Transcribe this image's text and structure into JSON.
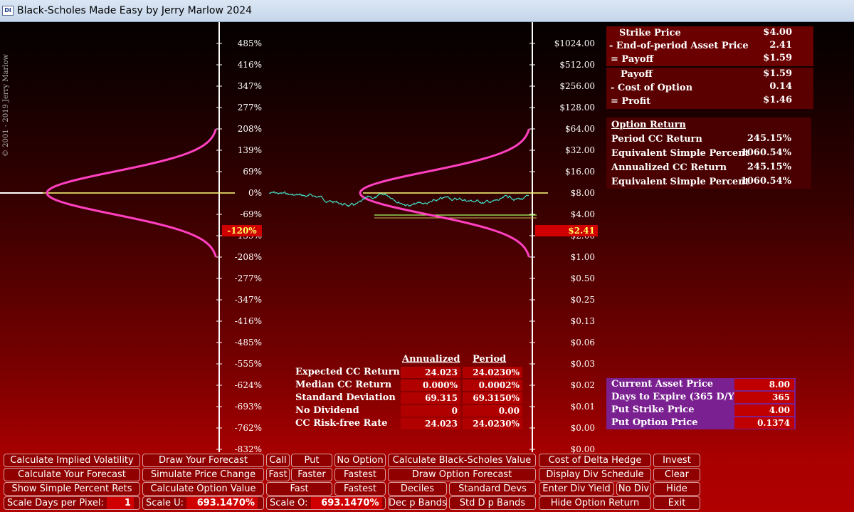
{
  "window": {
    "title": "Black-Scholes Made Easy by Jerry Marlow  2024",
    "icon": "app-icon"
  },
  "copyright": "© 2001 - 2019   Jerry Marlow",
  "left_axis_labels": [
    "485%",
    "416%",
    "347%",
    "277%",
    "208%",
    "139%",
    "69%",
    "0%",
    "-69%",
    "-139%",
    "-208%",
    "-277%",
    "-347%",
    "-416%",
    "-485%",
    "-555%",
    "-624%",
    "-693%",
    "-762%",
    "-832%"
  ],
  "right_axis_labels": [
    "$1024.00",
    "$512.00",
    "$256.00",
    "$128.00",
    "$64.00",
    "$32.00",
    "$16.00",
    "$8.00",
    "$4.00",
    "$2.00",
    "$1.00",
    "$0.50",
    "$0.25",
    "$0.13",
    "$0.06",
    "$0.03",
    "$0.02",
    "$0.01",
    "$0.00",
    "$0.00"
  ],
  "markers": {
    "left": "-120%",
    "right": "$2.41"
  },
  "payoff": {
    "strike_label": "Strike Price",
    "strike_value": "$4.00",
    "end_label": " - End-of-period Asset Price",
    "end_value": "2.41",
    "payoff_label": "= Payoff",
    "payoff_value": "$1.59"
  },
  "profit": {
    "payoff_label": "Payoff",
    "payoff_value": "$1.59",
    "cost_label": "-  Cost of Option",
    "cost_value": "0.14",
    "profit_label": "= Profit",
    "profit_value": "$1.46"
  },
  "option_return": {
    "header": "Option Return",
    "rows": [
      {
        "label": "Period CC Return",
        "value": "245.15%"
      },
      {
        "label": "Equivalent Simple Percent",
        "value": "1060.54%"
      },
      {
        "label": "Annualized CC Return",
        "value": "245.15%"
      },
      {
        "label": "Equivalent Simple Percent",
        "value": "1060.54%"
      }
    ]
  },
  "stats": {
    "col_annualized": "Annualized",
    "col_period": "Period",
    "rows": [
      {
        "label": "Expected CC Return",
        "annualized": "24.023",
        "period": "24.0230%"
      },
      {
        "label": "Median CC Return",
        "annualized": "0.000%",
        "period": "0.0002%"
      },
      {
        "label": "Standard Deviation",
        "annualized": "69.315",
        "period": "69.3150%"
      },
      {
        "label": "No Dividend",
        "annualized": "0",
        "period": "0.00"
      },
      {
        "label": "CC Risk-free Rate",
        "annualized": "24.023",
        "period": "24.0230%"
      }
    ]
  },
  "current": {
    "rows": [
      {
        "label": "Current Asset Price",
        "value": "8.00"
      },
      {
        "label": "Days to Expire  (365 D/Y)",
        "value": "365"
      },
      {
        "label": "Put Strike Price",
        "value": "4.00"
      },
      {
        "label": "Put Option Price",
        "value": "0.1374"
      }
    ]
  },
  "buttons": {
    "calc_implied_vol": "Calculate Implied Volatility",
    "draw_forecast": "Draw Your Forecast",
    "call": "Call",
    "put": "Put",
    "no_option": "No Option",
    "calc_bs_value": "Calculate Black-Scholes Value",
    "cost_delta_hedge": "Cost of Delta Hedge",
    "invest": "Invest",
    "calc_forecast": "Calculate Your Forecast",
    "simulate_price": "Simulate Price Change",
    "fast1": "Fast",
    "faster": "Faster",
    "fastest1": "Fastest",
    "draw_option_forecast": "Draw Option Forecast",
    "display_div_schedule": "Display Div Schedule",
    "clear": "Clear",
    "show_simple_pct": "Show Simple Percent Rets",
    "calc_option_value": "Calculate Option  Value",
    "fast2": "Fast",
    "fastest2": "Fastest",
    "deciles": "Deciles",
    "standard_devs": "Standard Devs",
    "enter_div_yield": "Enter Div Yield",
    "no_div": "No Div",
    "hide": "Hide",
    "scale_days_label": "Scale Days per Pixel:",
    "scale_days_value": "1",
    "scale_u_label": "Scale U:",
    "scale_u_value": "693.1470%",
    "scale_o_label": "Scale O:",
    "scale_o_value": "693.1470%",
    "dec_p_bands": "Dec p Bands",
    "std_d_p_bands": "Std D p Bands",
    "hide_option_return": "Hide Option Return",
    "exit": "Exit"
  },
  "colors": {
    "curve": "#ff40c0",
    "path": "#40e0c8",
    "axis": "#ffffff",
    "zero_line": "#ffff80",
    "strike_line": "#a0ff60"
  }
}
